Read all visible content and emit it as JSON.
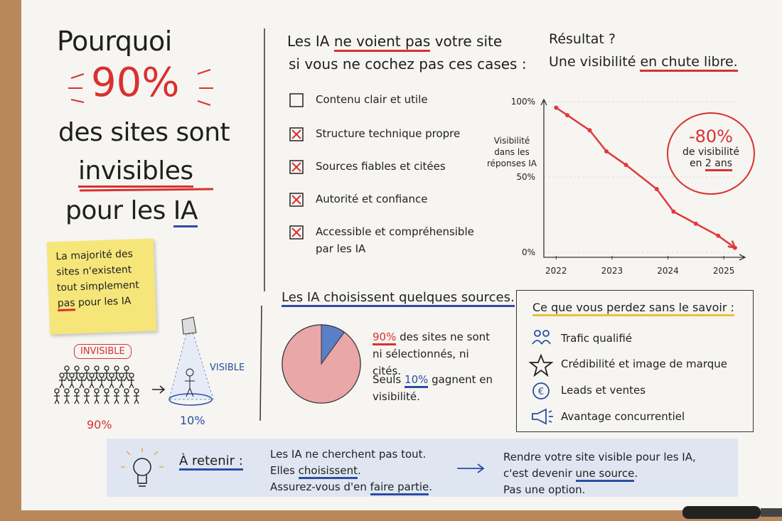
{
  "headline": {
    "line1": "Pourquoi",
    "highlight": "90%",
    "line2": "des sites sont",
    "line3": "invisibles",
    "line4a": "pour les",
    "line4b": "IA"
  },
  "sticky_note": {
    "lines": [
      "La majorité des",
      "sites n'existent",
      "tout simplement"
    ],
    "last_emph": "pas",
    "last_rest": "pour les IA"
  },
  "illustration": {
    "crowd_label": "INVISIBLE",
    "crowd_share": "90%",
    "spot_label": "VISIBLE",
    "spot_share": "10%"
  },
  "checklist": {
    "heading_a": "Les IA",
    "heading_emph": "ne voient pas",
    "heading_b": "votre site",
    "heading_line2": "si vous ne cochez pas ces cases :",
    "items": [
      {
        "label": "Contenu clair et utile",
        "checked": false
      },
      {
        "label": "Structure technique propre",
        "checked": true
      },
      {
        "label": "Sources fiables et citées",
        "checked": true
      },
      {
        "label": "Autorité et confiance",
        "checked": true
      },
      {
        "label": "Accessible et compréhensible par les IA",
        "checked": true
      }
    ]
  },
  "result": {
    "line1": "Résultat ?",
    "line2a": "Une visibilité",
    "line2_emph": "en chute libre."
  },
  "annotation": {
    "value": "-80%",
    "line1": "de visibilité",
    "line2a": "en",
    "line2_emph": "2 ans"
  },
  "chart_data": [
    {
      "type": "line",
      "y_label": [
        "Visibilité",
        "dans les",
        "réponses IA"
      ],
      "x": [
        2022,
        2022.2,
        2022.6,
        2022.9,
        2023.25,
        2023.8,
        2024.1,
        2024.5,
        2024.9,
        2025.2
      ],
      "series": [
        {
          "name": "Visibilité dans les réponses IA",
          "color": "#e0393b",
          "values": [
            96,
            91,
            81,
            67,
            58,
            42,
            27,
            19,
            11,
            3
          ]
        }
      ],
      "xlim": [
        2021.78,
        2025.38
      ],
      "xticks": [
        2022,
        2023,
        2024,
        2025
      ],
      "ylim": [
        0,
        100
      ],
      "yticks": [
        {
          "value": 0,
          "label": "0%"
        },
        {
          "value": 50,
          "label": "50%"
        },
        {
          "value": 100,
          "label": "100%"
        }
      ],
      "grid": true
    },
    {
      "type": "pie",
      "title": "Les IA choisissent quelques sources.",
      "categories": [
        "des sites ne sont ni sélectionnés, ni cités.",
        "gagnent en visibilité."
      ],
      "values": [
        90,
        10
      ],
      "value_labels": [
        "90%",
        "10%"
      ],
      "colors": [
        "#e9a7a8",
        "#5b7fc6"
      ],
      "prefix_2": "Seuls"
    }
  ],
  "losses": {
    "heading": "Ce que vous perdez sans le savoir :",
    "items": [
      "Trafic qualifié",
      "Crédibilité et image de marque",
      "Leads et ventes",
      "Avantage concurrentiel"
    ]
  },
  "takeaway": {
    "label": "À retenir :",
    "l1": "Les IA ne cherchent pas tout.",
    "l2a": "Elles",
    "l2u": "choisissent",
    "l2b": ".",
    "l3a": "Assurez-vous d'en",
    "l3u": "faire partie",
    "l3b": ".",
    "r1": "Rendre votre site visible pour les IA,",
    "r2a": "c'est devenir",
    "r2u": "une source",
    "r2b": ".",
    "r3": "Pas une option."
  }
}
